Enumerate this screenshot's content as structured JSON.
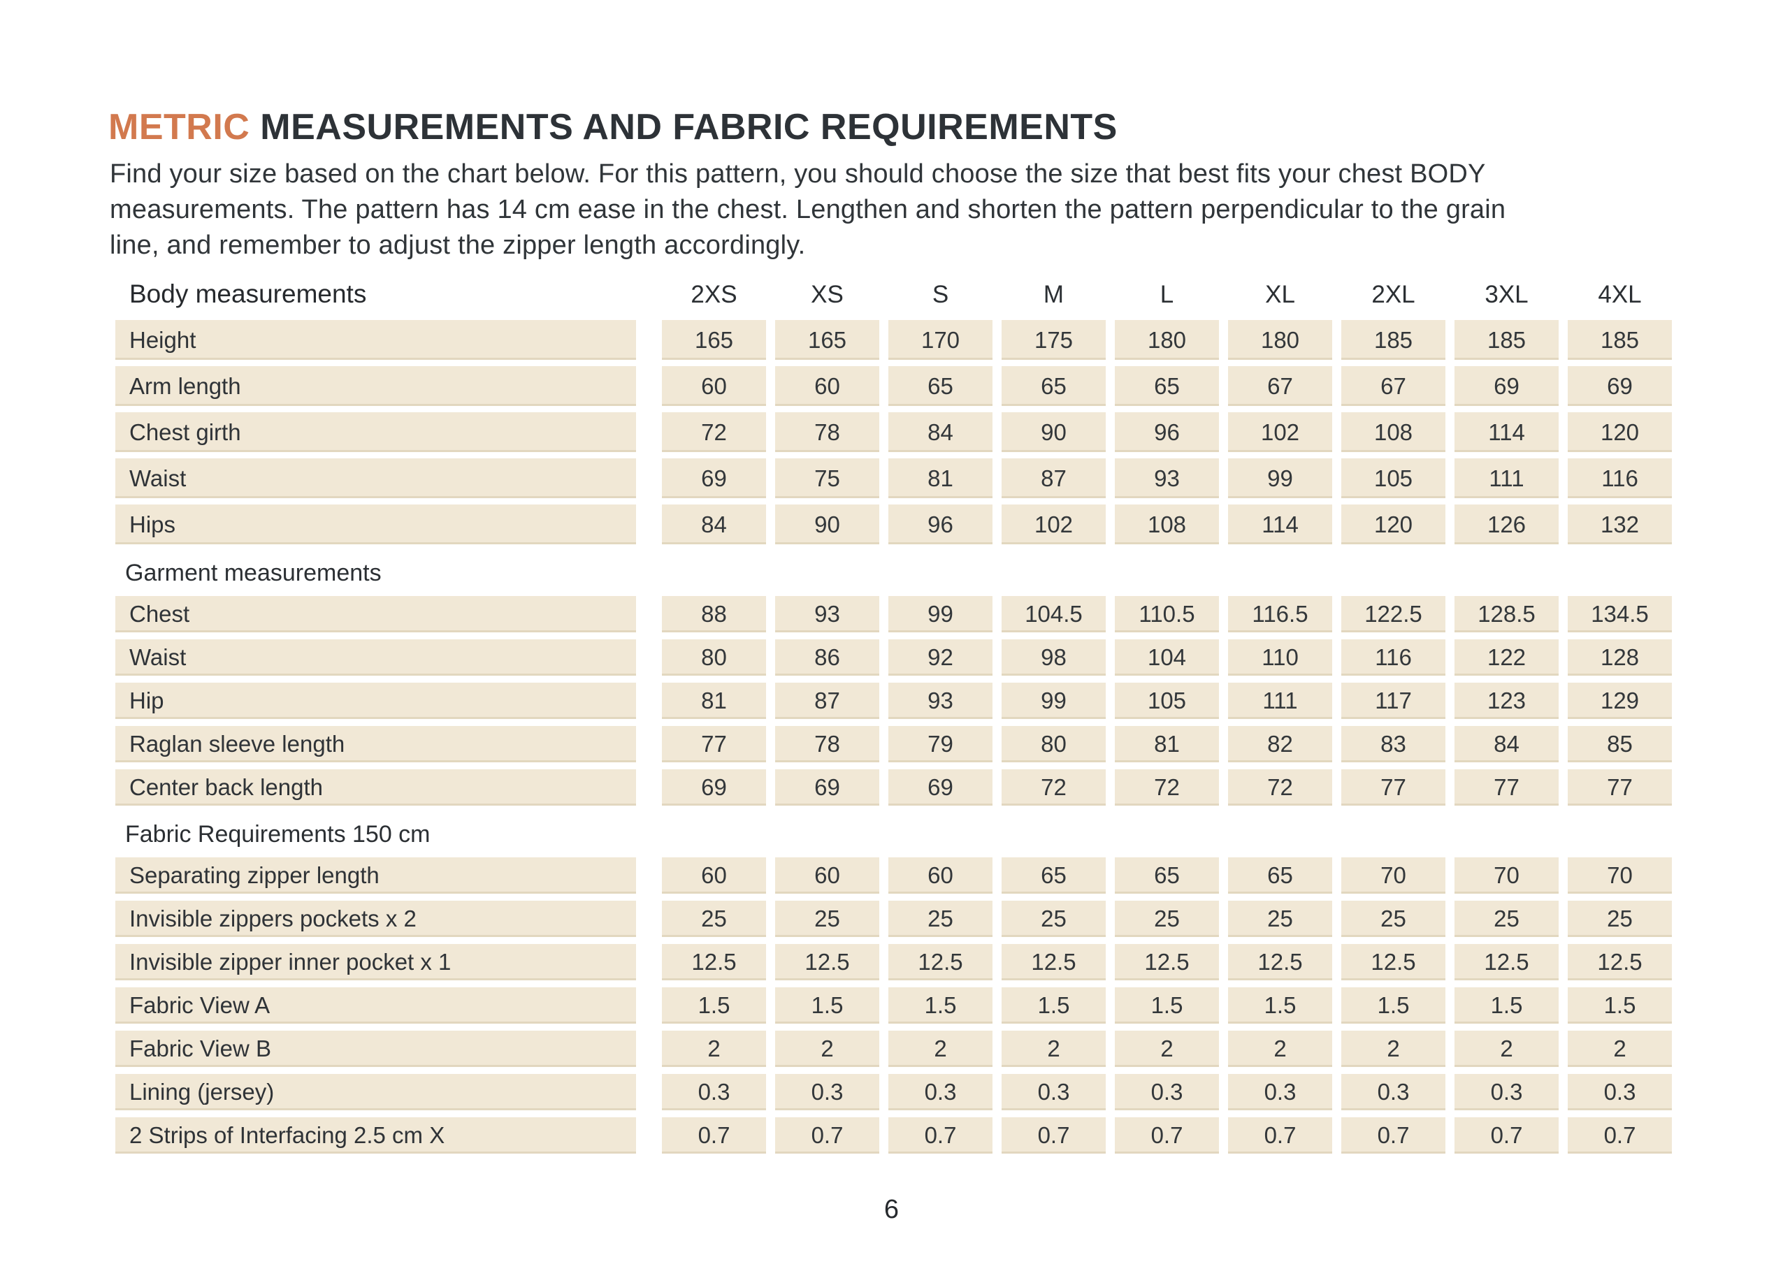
{
  "header": {
    "title_accent": "METRIC",
    "title_rest": " MEASUREMENTS AND FABRIC REQUIREMENTS",
    "intro_lines": [
      "Find your size based on the chart below. For this pattern, you should choose the size that best fits your chest BODY",
      "measurements. The pattern has 14 cm ease in the chest. Lengthen and shorten the pattern perpendicular to the grain",
      "line, and remember to adjust the zipper length accordingly."
    ]
  },
  "colors": {
    "accent": "#d2794e",
    "cell_bg": "#f1e8d6",
    "text": "#2e3236"
  },
  "table": {
    "header_label": "Body measurements",
    "sizes": [
      "2XS",
      "XS",
      "S",
      "M",
      "L",
      "XL",
      "2XL",
      "3XL",
      "4XL"
    ],
    "sections": [
      {
        "label": "",
        "rows": [
          {
            "label": "Height",
            "values": [
              "165",
              "165",
              "170",
              "175",
              "180",
              "180",
              "185",
              "185",
              "185"
            ]
          },
          {
            "label": "Arm length",
            "values": [
              "60",
              "60",
              "65",
              "65",
              "65",
              "67",
              "67",
              "69",
              "69"
            ]
          },
          {
            "label": "Chest girth",
            "values": [
              "72",
              "78",
              "84",
              "90",
              "96",
              "102",
              "108",
              "114",
              "120"
            ]
          },
          {
            "label": "Waist",
            "values": [
              "69",
              "75",
              "81",
              "87",
              "93",
              "99",
              "105",
              "111",
              "116"
            ]
          },
          {
            "label": "Hips",
            "values": [
              "84",
              "90",
              "96",
              "102",
              "108",
              "114",
              "120",
              "126",
              "132"
            ]
          }
        ]
      },
      {
        "label": "Garment measurements",
        "rows": [
          {
            "label": "Chest",
            "values": [
              "88",
              "93",
              "99",
              "104.5",
              "110.5",
              "116.5",
              "122.5",
              "128.5",
              "134.5"
            ]
          },
          {
            "label": "Waist",
            "values": [
              "80",
              "86",
              "92",
              "98",
              "104",
              "110",
              "116",
              "122",
              "128"
            ]
          },
          {
            "label": "Hip",
            "values": [
              "81",
              "87",
              "93",
              "99",
              "105",
              "111",
              "117",
              "123",
              "129"
            ]
          },
          {
            "label": "Raglan sleeve length",
            "values": [
              "77",
              "78",
              "79",
              "80",
              "81",
              "82",
              "83",
              "84",
              "85"
            ]
          },
          {
            "label": "Center back length",
            "values": [
              "69",
              "69",
              "69",
              "72",
              "72",
              "72",
              "77",
              "77",
              "77"
            ]
          }
        ]
      },
      {
        "label": "Fabric Requirements 150 cm",
        "rows": [
          {
            "label": "Separating zipper length",
            "values": [
              "60",
              "60",
              "60",
              "65",
              "65",
              "65",
              "70",
              "70",
              "70"
            ]
          },
          {
            "label": "Invisible zippers pockets x 2",
            "values": [
              "25",
              "25",
              "25",
              "25",
              "25",
              "25",
              "25",
              "25",
              "25"
            ]
          },
          {
            "label": "Invisible zipper inner pocket x 1",
            "values": [
              "12.5",
              "12.5",
              "12.5",
              "12.5",
              "12.5",
              "12.5",
              "12.5",
              "12.5",
              "12.5"
            ]
          },
          {
            "label": "Fabric View A",
            "values": [
              "1.5",
              "1.5",
              "1.5",
              "1.5",
              "1.5",
              "1.5",
              "1.5",
              "1.5",
              "1.5"
            ]
          },
          {
            "label": "Fabric View B",
            "values": [
              "2",
              "2",
              "2",
              "2",
              "2",
              "2",
              "2",
              "2",
              "2"
            ]
          },
          {
            "label": "Lining (jersey)",
            "values": [
              "0.3",
              "0.3",
              "0.3",
              "0.3",
              "0.3",
              "0.3",
              "0.3",
              "0.3",
              "0.3"
            ]
          },
          {
            "label": "2 Strips of Interfacing  2.5 cm X",
            "values": [
              "0.7",
              "0.7",
              "0.7",
              "0.7",
              "0.7",
              "0.7",
              "0.7",
              "0.7",
              "0.7"
            ]
          }
        ]
      }
    ]
  },
  "footer": {
    "page_number": "6"
  }
}
